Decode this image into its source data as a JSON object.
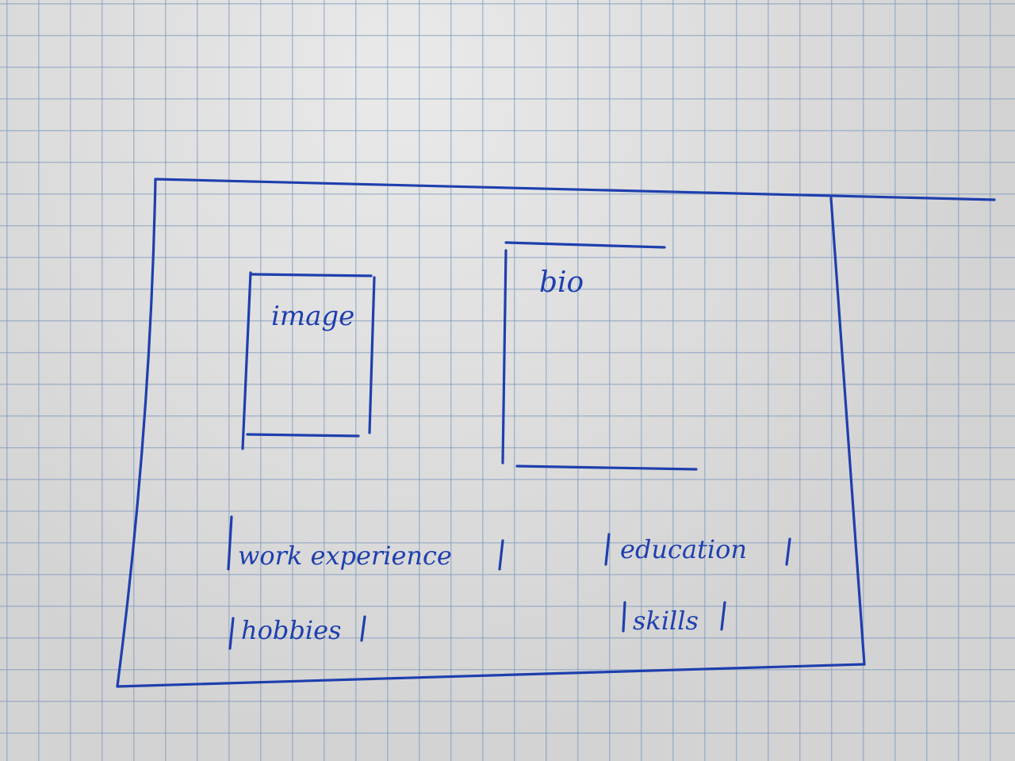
{
  "sketch": {
    "ink_color": "#1e3fae",
    "paper_color": "#dedede",
    "grid_color": "#7896be",
    "image_box": {
      "label": "image"
    },
    "bio_box": {
      "label": "bio"
    },
    "sections": {
      "work_experience": "work experience",
      "education": "education",
      "hobbies": "hobbies",
      "skills": "skills"
    }
  }
}
